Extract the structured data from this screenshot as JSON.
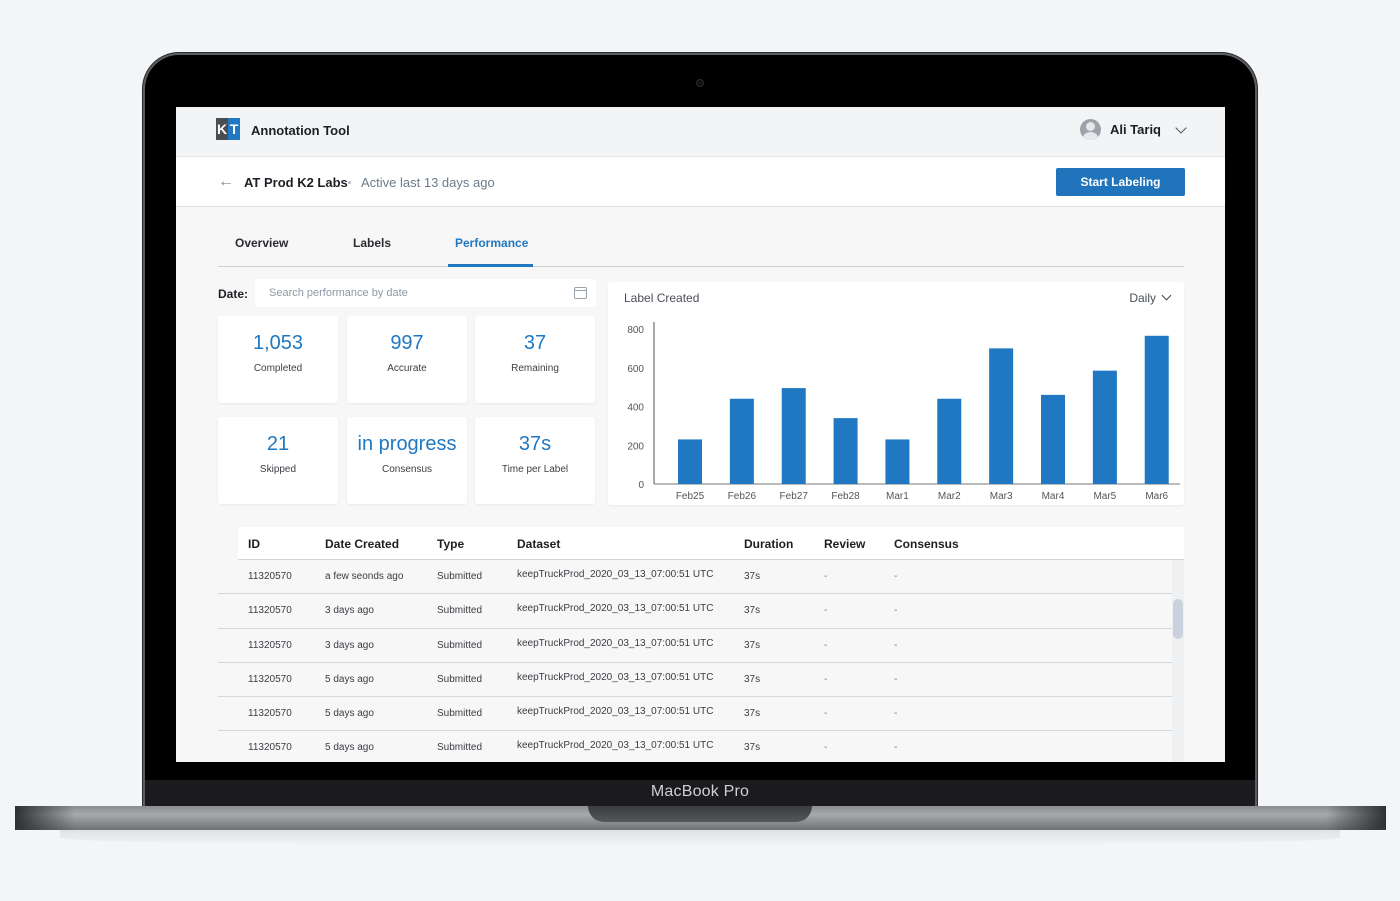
{
  "device": {
    "label": "MacBook Pro"
  },
  "header": {
    "logo": {
      "left": "K",
      "right": "T"
    },
    "app_title": "Annotation Tool",
    "user": {
      "name": "Ali Tariq"
    }
  },
  "project": {
    "back_icon": "arrow-left-icon",
    "name": "AT Prod K2 Labs",
    "activity": "Active last 13 days ago",
    "start_button": "Start Labeling"
  },
  "tabs": [
    {
      "label": "Overview",
      "active": false
    },
    {
      "label": "Labels",
      "active": false
    },
    {
      "label": "Performance",
      "active": true
    }
  ],
  "filter": {
    "label": "Date:",
    "placeholder": "Search performance by date",
    "icon": "calendar-icon"
  },
  "stats": [
    {
      "value": "1,053",
      "label": "Completed"
    },
    {
      "value": "997",
      "label": "Accurate"
    },
    {
      "value": "37",
      "label": "Remaining"
    },
    {
      "value": "21",
      "label": "Skipped"
    },
    {
      "value": "in progress",
      "label": "Consensus"
    },
    {
      "value": "37s",
      "label": "Time per Label"
    }
  ],
  "chart": {
    "title": "Label Created",
    "period": "Daily"
  },
  "chart_data": {
    "type": "bar",
    "title": "Label Created",
    "categories": [
      "Feb25",
      "Feb26",
      "Feb27",
      "Feb28",
      "Mar1",
      "Mar2",
      "Mar3",
      "Mar4",
      "Mar5",
      "Mar6"
    ],
    "values": [
      230,
      440,
      495,
      340,
      230,
      440,
      700,
      460,
      585,
      765
    ],
    "xlabel": "",
    "ylabel": "",
    "ylim": [
      0,
      800
    ],
    "yticks": [
      0,
      200,
      400,
      600,
      800
    ],
    "grid": false,
    "color": "#1f78c1"
  },
  "table": {
    "columns": [
      "ID",
      "Date Created",
      "Type",
      "Dataset",
      "Duration",
      "Review",
      "Consensus"
    ],
    "rows": [
      {
        "id": "11320570",
        "date": "a few seonds ago",
        "type": "Submitted",
        "dataset": "keepTruckProd_2020_03_13_07:00:51 UTC",
        "duration": "37s",
        "review": "-",
        "consensus": "-"
      },
      {
        "id": "11320570",
        "date": "3 days ago",
        "type": "Submitted",
        "dataset": "keepTruckProd_2020_03_13_07:00:51 UTC",
        "duration": "37s",
        "review": "-",
        "consensus": "-"
      },
      {
        "id": "11320570",
        "date": "3 days ago",
        "type": "Submitted",
        "dataset": "keepTruckProd_2020_03_13_07:00:51 UTC",
        "duration": "37s",
        "review": "-",
        "consensus": "-"
      },
      {
        "id": "11320570",
        "date": "5 days ago",
        "type": "Submitted",
        "dataset": "keepTruckProd_2020_03_13_07:00:51 UTC",
        "duration": "37s",
        "review": "-",
        "consensus": "-"
      },
      {
        "id": "11320570",
        "date": "5 days ago",
        "type": "Submitted",
        "dataset": "keepTruckProd_2020_03_13_07:00:51 UTC",
        "duration": "37s",
        "review": "-",
        "consensus": "-"
      },
      {
        "id": "11320570",
        "date": "5 days ago",
        "type": "Submitted",
        "dataset": "keepTruckProd_2020_03_13_07:00:51 UTC",
        "duration": "37s",
        "review": "-",
        "consensus": "-"
      }
    ]
  },
  "colors": {
    "accent": "#1f78c1",
    "button": "#1f74bb",
    "background": "#f7f7f8"
  }
}
